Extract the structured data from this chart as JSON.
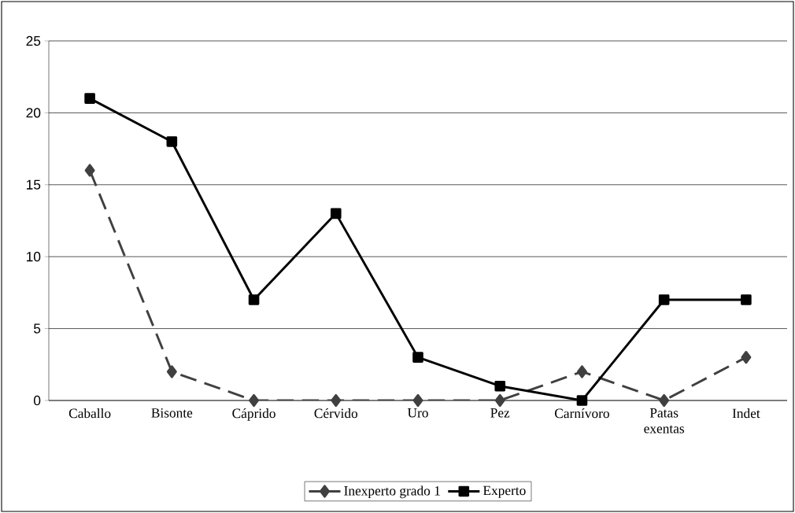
{
  "chart_data": {
    "type": "line",
    "categories": [
      "Caballo",
      "Bisonte",
      "Cáprido",
      "Cérvido",
      "Uro",
      "Pez",
      "Carnívoro",
      "Patas exentas",
      "Indet"
    ],
    "series": [
      {
        "name": "Inexperto grado 1",
        "color": "#404040",
        "values": [
          16,
          2,
          0,
          0,
          0,
          0,
          2,
          0,
          3
        ],
        "marker": "diamond",
        "line_style": "dashed"
      },
      {
        "name": "Experto",
        "color": "#000000",
        "values": [
          21,
          18,
          7,
          13,
          3,
          1,
          0,
          7,
          7
        ],
        "marker": "square",
        "line_style": "solid"
      }
    ],
    "ylim": [
      0,
      25
    ],
    "yticks": [
      0,
      5,
      10,
      15,
      20,
      25
    ],
    "grid": "y",
    "legend": "bottom"
  }
}
